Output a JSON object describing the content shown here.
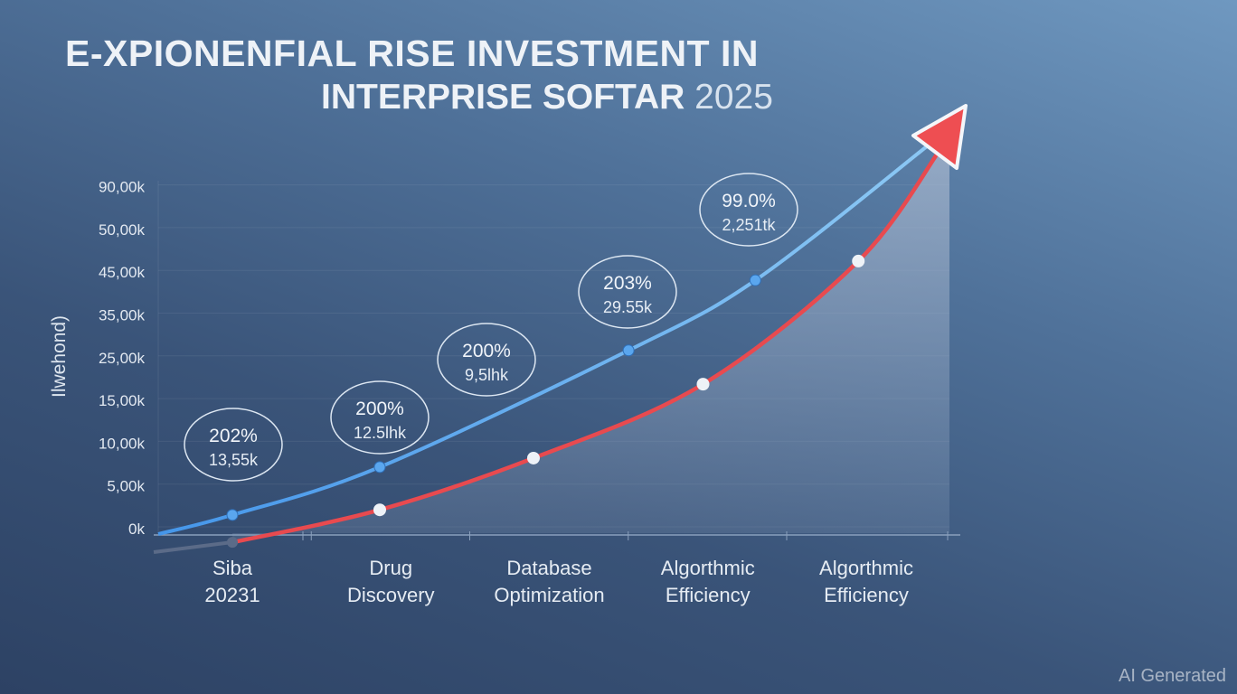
{
  "title": {
    "line1": "E-XPIONENFIAL RISE INVESTMENT  IN",
    "line2": "INTERPRISE SOFTAR",
    "year": "2025"
  },
  "watermark": "AI Generated",
  "chart_data": {
    "type": "line",
    "title": "E-XPIONENFIAL RISE INVESTMENT IN INTERPRISE SOFTAR 2025",
    "ylabel": "Ilwehond)",
    "xlabel": "",
    "y_ticks": [
      "0k",
      "5,00k",
      "10,00k",
      "15,00k",
      "25,00k",
      "35,00k",
      "45,00k",
      "50,00k",
      "90,00k"
    ],
    "categories": [
      [
        "Siba",
        "20231"
      ],
      [
        "Drug",
        "Discovery"
      ],
      [
        "Database",
        "Optimization"
      ],
      [
        "Algorthmic",
        "Efficiency"
      ],
      [
        "Algorthmic",
        "Efficiency"
      ]
    ],
    "y_scale_note": "values in tick-index units (0 = 0k, 8 = 90,00k)",
    "series": [
      {
        "name": "blue",
        "color": "#4d9be8",
        "points": [
          [
            0,
            0.32
          ],
          [
            0.93,
            1.44
          ],
          [
            2.5,
            4.17
          ],
          [
            3.3,
            5.81
          ]
        ]
      },
      {
        "name": "red",
        "color": "#e84a4f",
        "points": [
          [
            0,
            -0.32
          ],
          [
            0.93,
            0.44
          ],
          [
            1.9,
            1.65
          ],
          [
            2.97,
            3.38
          ],
          [
            3.95,
            6.26
          ]
        ]
      }
    ],
    "annotations": [
      {
        "pct": "202%",
        "value": "13,55k"
      },
      {
        "pct": "200%",
        "value": "12.5lhk"
      },
      {
        "pct": "200%",
        "value": "9,5lhk"
      },
      {
        "pct": "203%",
        "value": "29.55k"
      },
      {
        "pct": "99.0%",
        "value": "2,251tk"
      }
    ],
    "grid": true
  }
}
